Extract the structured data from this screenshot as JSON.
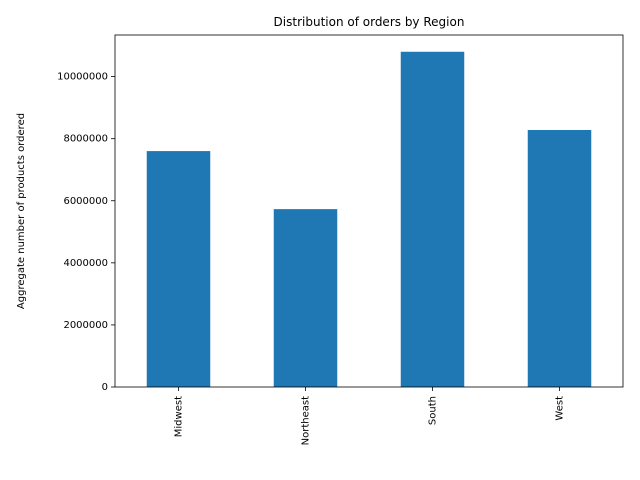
{
  "chart_data": {
    "type": "bar",
    "title": "Distribution of orders by Region",
    "xlabel": "",
    "ylabel": "Aggregate number of products ordered",
    "categories": [
      "Midwest",
      "Northeast",
      "South",
      "West"
    ],
    "values": [
      7600000,
      5730000,
      10800000,
      8280000
    ],
    "ylim": [
      0,
      11340000
    ],
    "yticks": [
      0,
      2000000,
      4000000,
      6000000,
      8000000,
      10000000
    ],
    "ytick_labels": [
      "0",
      "2000000",
      "4000000",
      "6000000",
      "8000000",
      "10000000"
    ],
    "grid": false,
    "bar_color": "#1f77b4"
  }
}
